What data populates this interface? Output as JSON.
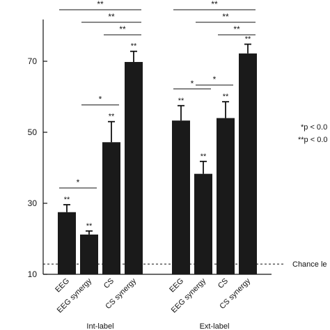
{
  "chart_data": {
    "type": "bar",
    "ylim": [
      10,
      80
    ],
    "yticks": [
      10,
      30,
      50,
      70
    ],
    "grid": false,
    "bar_color": "#1a1a1a",
    "groups": [
      {
        "label": "Int-label",
        "categories": [
          "EEG",
          "EEG synergy",
          "CS",
          "CS synergy"
        ],
        "values": [
          27.5,
          21.2,
          47.2,
          69.8
        ],
        "errors": [
          2.1,
          1.0,
          5.8,
          3.0
        ],
        "bar_marks": [
          "**",
          "**",
          "**",
          "**"
        ]
      },
      {
        "label": "Ext-label",
        "categories": [
          "EEG",
          "EEG synergy",
          "CS",
          "CS synergy"
        ],
        "values": [
          53.3,
          38.3,
          54.0,
          72.2
        ],
        "errors": [
          4.2,
          3.5,
          4.6,
          2.6
        ],
        "bar_marks": [
          "**",
          "**",
          "**",
          "**"
        ]
      }
    ],
    "significance_brackets": [
      {
        "group": 0,
        "from": 0,
        "to": 1,
        "label": "*"
      },
      {
        "group": 0,
        "from": 1,
        "to": 2,
        "label": "*"
      },
      {
        "group": 0,
        "from": 2,
        "to": 3,
        "label": "**"
      },
      {
        "group": 0,
        "from": 1,
        "to": 3,
        "label": "**"
      },
      {
        "group": 0,
        "from": 0,
        "to": 3,
        "label": "**"
      },
      {
        "group": 1,
        "from": 0,
        "to": 1,
        "label": "*"
      },
      {
        "group": 1,
        "from": 1,
        "to": 2,
        "label": "*"
      },
      {
        "group": 1,
        "from": 2,
        "to": 3,
        "label": "**"
      },
      {
        "group": 1,
        "from": 1,
        "to": 3,
        "label": "**"
      },
      {
        "group": 1,
        "from": 0,
        "to": 3,
        "label": "**"
      }
    ],
    "chance_level": {
      "value": 12.9,
      "label": "Chance le"
    },
    "legend": [
      "*p < 0.0",
      "**p < 0.0"
    ]
  }
}
